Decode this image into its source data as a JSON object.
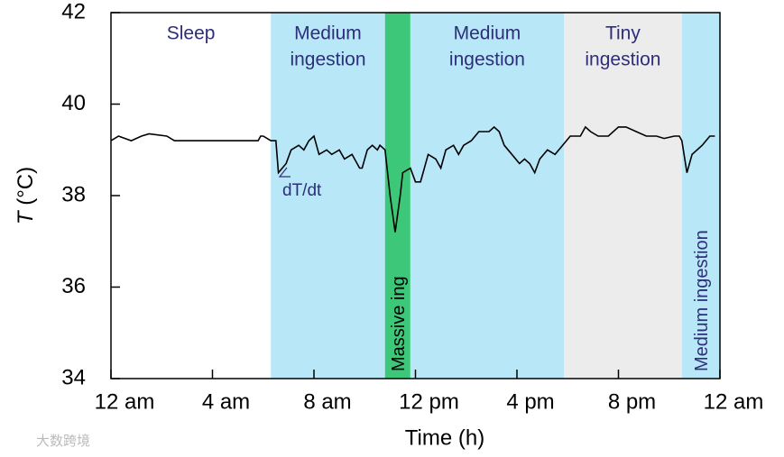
{
  "chart_data": {
    "type": "line",
    "x_label": "Time (h)",
    "y_label_symbol": "T",
    "y_label_unit": "(°C)",
    "xlim": [
      0,
      24
    ],
    "ylim": [
      34,
      42
    ],
    "xticks": [
      {
        "value": 0,
        "label": "12 am"
      },
      {
        "value": 4,
        "label": "4 am"
      },
      {
        "value": 8,
        "label": "8 am"
      },
      {
        "value": 12,
        "label": "12 pm"
      },
      {
        "value": 16,
        "label": "4 pm"
      },
      {
        "value": 20,
        "label": "8 pm"
      },
      {
        "value": 24,
        "label": "12 am"
      }
    ],
    "yticks": [
      34,
      36,
      38,
      40,
      42
    ],
    "regions": [
      {
        "start": 0,
        "end": 6.3,
        "label": [
          "Sleep"
        ],
        "color": "#ffffff",
        "orientation": "horizontal"
      },
      {
        "start": 6.3,
        "end": 10.8,
        "label": [
          "Medium",
          "ingestion"
        ],
        "color": "#b8e7f8",
        "orientation": "horizontal"
      },
      {
        "start": 10.8,
        "end": 11.8,
        "label": [
          "Massive ing"
        ],
        "color": "#3cc878",
        "orientation": "vertical"
      },
      {
        "start": 11.8,
        "end": 17.85,
        "label": [
          "Medium",
          "ingestion"
        ],
        "color": "#b8e7f8",
        "orientation": "horizontal"
      },
      {
        "start": 17.85,
        "end": 22.5,
        "label": [
          "Tiny",
          "ingestion"
        ],
        "color": "#ececec",
        "orientation": "horizontal"
      },
      {
        "start": 22.5,
        "end": 24,
        "label": [
          "Medium ingestion"
        ],
        "color": "#b8e7f8",
        "orientation": "vertical"
      }
    ],
    "annotation": "dT/dt",
    "watermark": "大数跨境",
    "x": [
      0,
      0.3,
      0.8,
      1.2,
      1.5,
      2.2,
      2.5,
      3,
      4,
      5,
      5.8,
      5.9,
      6.0,
      6.3,
      6.5,
      6.6,
      6.9,
      7.1,
      7.4,
      7.6,
      7.8,
      8.0,
      8.2,
      8.5,
      8.7,
      9.0,
      9.2,
      9.5,
      9.8,
      9.9,
      10.1,
      10.3,
      10.5,
      10.6,
      10.8,
      11.0,
      11.2,
      11.4,
      11.5,
      11.8,
      12.0,
      12.2,
      12.5,
      12.8,
      13.0,
      13.2,
      13.5,
      13.7,
      13.9,
      14.2,
      14.5,
      14.9,
      15.1,
      15.3,
      15.5,
      15.8,
      16.1,
      16.3,
      16.5,
      16.7,
      16.9,
      17.2,
      17.5,
      17.8,
      18.1,
      18.5,
      18.7,
      18.9,
      19.2,
      19.6,
      20.0,
      20.3,
      20.7,
      21.1,
      21.5,
      21.8,
      22.2,
      22.4,
      22.5,
      22.7,
      22.9,
      23.3,
      23.6,
      23.8
    ],
    "series": [
      {
        "name": "T",
        "color": "#000000",
        "values": [
          39.2,
          39.3,
          39.2,
          39.3,
          39.35,
          39.3,
          39.2,
          39.2,
          39.2,
          39.2,
          39.2,
          39.3,
          39.3,
          39.2,
          39.2,
          38.5,
          38.7,
          39.0,
          39.1,
          39.0,
          39.2,
          39.3,
          38.9,
          39.0,
          38.9,
          39.0,
          38.8,
          38.9,
          38.6,
          38.6,
          39.0,
          39.1,
          39.0,
          39.1,
          39.0,
          38.0,
          37.2,
          38.0,
          38.5,
          38.6,
          38.3,
          38.3,
          38.9,
          38.8,
          38.6,
          39.0,
          39.1,
          38.9,
          39.1,
          39.2,
          39.4,
          39.4,
          39.5,
          39.4,
          39.1,
          38.9,
          38.7,
          38.8,
          38.7,
          38.5,
          38.8,
          39.0,
          38.9,
          39.1,
          39.3,
          39.3,
          39.5,
          39.4,
          39.3,
          39.3,
          39.5,
          39.5,
          39.4,
          39.3,
          39.3,
          39.25,
          39.3,
          39.3,
          39.2,
          38.5,
          38.9,
          39.1,
          39.3,
          39.3
        ]
      }
    ]
  }
}
